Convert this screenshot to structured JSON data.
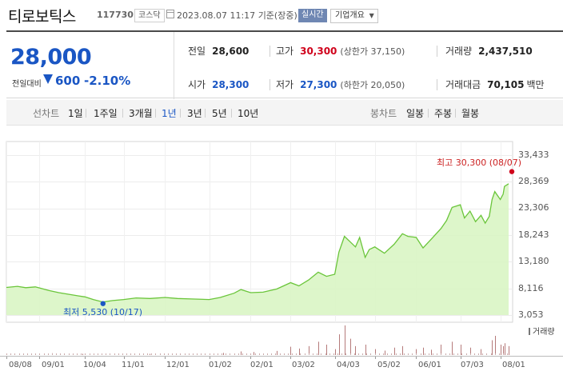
{
  "header": {
    "stock_name": "티로보틱스",
    "stock_code": "117730",
    "market": "코스닥",
    "datetime": "2023.08.07 11:17",
    "basis": "기준(장중)",
    "realtime_label": "실시간",
    "company_info_label": "기업개요"
  },
  "summary": {
    "price": "28,000",
    "change_label": "전일대비",
    "change_value": "600",
    "change_pct": "-2.10%",
    "prev_close_label": "전일",
    "prev_close": "28,600",
    "open_label": "시가",
    "open": "28,300",
    "high_label": "고가",
    "high": "30,300",
    "upper_limit": "(상한가 37,150)",
    "low_label": "저가",
    "low": "27,300",
    "lower_limit": "(하한가 20,050)",
    "volume_label": "거래량",
    "volume": "2,437,510",
    "value_label": "거래대금",
    "value": "70,105",
    "value_unit": "백만"
  },
  "tabs": {
    "line_label": "선차트",
    "line_periods": [
      "1일",
      "1주일",
      "3개월",
      "1년",
      "3년",
      "5년",
      "10년"
    ],
    "active_period": "1년",
    "candle_label": "봉차트",
    "candle_periods": [
      "일봉",
      "주봉",
      "월봉"
    ]
  },
  "colors": {
    "up": "#d0021b",
    "down": "#1a56c4",
    "line": "#6ac53a",
    "fill": "#d9f5c4"
  },
  "chart_data": {
    "type": "area",
    "title": "",
    "y_ticks": [
      "33,433",
      "28,369",
      "23,306",
      "18,243",
      "13,180",
      "8,116",
      "3,053"
    ],
    "ylim": [
      3053,
      33433
    ],
    "x_ticks": [
      "08/08",
      "09/01",
      "10/04",
      "11/01",
      "12/01",
      "01/02",
      "02/01",
      "03/02",
      "04/03",
      "05/02",
      "06/01",
      "07/03",
      "08/01"
    ],
    "max_annotation": "최고 30,300 (08/07)",
    "min_annotation": "최저 5,530 (10/17)",
    "volume_label": "거래량",
    "grid": true,
    "price_series": [
      {
        "x": "2022-08-08",
        "y": 8300
      },
      {
        "x": "2022-08-16",
        "y": 8500
      },
      {
        "x": "2022-08-22",
        "y": 8250
      },
      {
        "x": "2022-08-29",
        "y": 8400
      },
      {
        "x": "2022-09-01",
        "y": 8200
      },
      {
        "x": "2022-09-08",
        "y": 7700
      },
      {
        "x": "2022-09-15",
        "y": 7300
      },
      {
        "x": "2022-09-22",
        "y": 7000
      },
      {
        "x": "2022-09-29",
        "y": 6700
      },
      {
        "x": "2022-10-04",
        "y": 6500
      },
      {
        "x": "2022-10-10",
        "y": 6000
      },
      {
        "x": "2022-10-17",
        "y": 5530
      },
      {
        "x": "2022-10-24",
        "y": 5800
      },
      {
        "x": "2022-11-01",
        "y": 6000
      },
      {
        "x": "2022-11-10",
        "y": 6300
      },
      {
        "x": "2022-11-20",
        "y": 6200
      },
      {
        "x": "2022-12-01",
        "y": 6400
      },
      {
        "x": "2022-12-10",
        "y": 6200
      },
      {
        "x": "2022-12-20",
        "y": 6100
      },
      {
        "x": "2023-01-02",
        "y": 6000
      },
      {
        "x": "2023-01-10",
        "y": 6400
      },
      {
        "x": "2023-01-20",
        "y": 7200
      },
      {
        "x": "2023-01-25",
        "y": 7900
      },
      {
        "x": "2023-02-01",
        "y": 7300
      },
      {
        "x": "2023-02-10",
        "y": 7400
      },
      {
        "x": "2023-02-20",
        "y": 8000
      },
      {
        "x": "2023-03-02",
        "y": 9200
      },
      {
        "x": "2023-03-08",
        "y": 8600
      },
      {
        "x": "2023-03-15",
        "y": 9700
      },
      {
        "x": "2023-03-22",
        "y": 11200
      },
      {
        "x": "2023-03-28",
        "y": 10400
      },
      {
        "x": "2023-04-03",
        "y": 10800
      },
      {
        "x": "2023-04-06",
        "y": 15000
      },
      {
        "x": "2023-04-10",
        "y": 18000
      },
      {
        "x": "2023-04-14",
        "y": 17000
      },
      {
        "x": "2023-04-18",
        "y": 16000
      },
      {
        "x": "2023-04-21",
        "y": 17800
      },
      {
        "x": "2023-04-25",
        "y": 14000
      },
      {
        "x": "2023-04-28",
        "y": 15500
      },
      {
        "x": "2023-05-02",
        "y": 16000
      },
      {
        "x": "2023-05-09",
        "y": 14800
      },
      {
        "x": "2023-05-16",
        "y": 16500
      },
      {
        "x": "2023-05-22",
        "y": 18500
      },
      {
        "x": "2023-05-26",
        "y": 18000
      },
      {
        "x": "2023-06-01",
        "y": 17800
      },
      {
        "x": "2023-06-06",
        "y": 15800
      },
      {
        "x": "2023-06-12",
        "y": 17500
      },
      {
        "x": "2023-06-19",
        "y": 19500
      },
      {
        "x": "2023-06-23",
        "y": 21000
      },
      {
        "x": "2023-06-27",
        "y": 23500
      },
      {
        "x": "2023-07-03",
        "y": 24000
      },
      {
        "x": "2023-07-06",
        "y": 21500
      },
      {
        "x": "2023-07-10",
        "y": 22800
      },
      {
        "x": "2023-07-14",
        "y": 20800
      },
      {
        "x": "2023-07-18",
        "y": 22000
      },
      {
        "x": "2023-07-21",
        "y": 20500
      },
      {
        "x": "2023-07-24",
        "y": 21800
      },
      {
        "x": "2023-07-26",
        "y": 25000
      },
      {
        "x": "2023-07-28",
        "y": 26500
      },
      {
        "x": "2023-08-01",
        "y": 25000
      },
      {
        "x": "2023-08-03",
        "y": 26000
      },
      {
        "x": "2023-08-04",
        "y": 27500
      },
      {
        "x": "2023-08-07",
        "y": 28000
      }
    ],
    "volume_series": [
      {
        "x": "2022-08-20",
        "v": 0.05
      },
      {
        "x": "2022-09-10",
        "v": 0.06
      },
      {
        "x": "2022-10-02",
        "v": 0.04
      },
      {
        "x": "2022-10-25",
        "v": 0.05
      },
      {
        "x": "2022-11-20",
        "v": 0.04
      },
      {
        "x": "2022-12-15",
        "v": 0.04
      },
      {
        "x": "2023-01-12",
        "v": 0.07
      },
      {
        "x": "2023-01-25",
        "v": 0.12
      },
      {
        "x": "2023-02-03",
        "v": 0.1
      },
      {
        "x": "2023-02-20",
        "v": 0.14
      },
      {
        "x": "2023-03-02",
        "v": 0.28
      },
      {
        "x": "2023-03-08",
        "v": 0.22
      },
      {
        "x": "2023-03-15",
        "v": 0.3
      },
      {
        "x": "2023-03-22",
        "v": 0.45
      },
      {
        "x": "2023-03-28",
        "v": 0.35
      },
      {
        "x": "2023-04-03",
        "v": 0.2
      },
      {
        "x": "2023-04-06",
        "v": 0.7
      },
      {
        "x": "2023-04-10",
        "v": 1.0
      },
      {
        "x": "2023-04-14",
        "v": 0.55
      },
      {
        "x": "2023-04-18",
        "v": 0.3
      },
      {
        "x": "2023-04-25",
        "v": 0.35
      },
      {
        "x": "2023-05-02",
        "v": 0.2
      },
      {
        "x": "2023-05-09",
        "v": 0.15
      },
      {
        "x": "2023-05-16",
        "v": 0.25
      },
      {
        "x": "2023-05-22",
        "v": 0.3
      },
      {
        "x": "2023-06-01",
        "v": 0.2
      },
      {
        "x": "2023-06-06",
        "v": 0.25
      },
      {
        "x": "2023-06-12",
        "v": 0.18
      },
      {
        "x": "2023-06-19",
        "v": 0.35
      },
      {
        "x": "2023-06-27",
        "v": 0.45
      },
      {
        "x": "2023-07-03",
        "v": 0.35
      },
      {
        "x": "2023-07-10",
        "v": 0.25
      },
      {
        "x": "2023-07-18",
        "v": 0.2
      },
      {
        "x": "2023-07-26",
        "v": 0.5
      },
      {
        "x": "2023-07-28",
        "v": 0.65
      },
      {
        "x": "2023-08-01",
        "v": 0.35
      },
      {
        "x": "2023-08-03",
        "v": 0.3
      },
      {
        "x": "2023-08-04",
        "v": 0.4
      },
      {
        "x": "2023-08-07",
        "v": 0.3
      }
    ]
  }
}
